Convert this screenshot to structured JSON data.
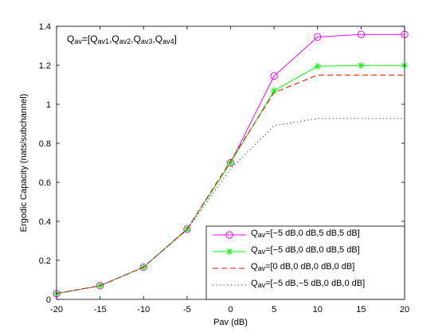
{
  "chart_data": {
    "type": "line",
    "title": "",
    "xlabel": "Pav (dB)",
    "ylabel": "Ergodic Capacity (nats/subchannel)",
    "xlim": [
      -20,
      20
    ],
    "ylim": [
      0,
      1.4
    ],
    "xticks": [
      -20,
      -15,
      -10,
      -5,
      0,
      5,
      10,
      15,
      20
    ],
    "yticks": [
      0,
      0.2,
      0.4,
      0.6,
      0.8,
      1,
      1.2,
      1.4
    ],
    "grid": false,
    "legend_position": "bottom-right",
    "annotation": {
      "parts": [
        {
          "text": "Q",
          "sub": false
        },
        {
          "text": "av",
          "sub": true
        },
        {
          "text": "=[Q",
          "sub": false
        },
        {
          "text": "av1",
          "sub": true
        },
        {
          "text": ",Q",
          "sub": false
        },
        {
          "text": "av2",
          "sub": true
        },
        {
          "text": ",Q",
          "sub": false
        },
        {
          "text": "av3",
          "sub": true
        },
        {
          "text": ",Q",
          "sub": false
        },
        {
          "text": "av4",
          "sub": true
        },
        {
          "text": "]",
          "sub": false
        }
      ]
    },
    "x": [
      -20,
      -15,
      -10,
      -5,
      0,
      5,
      10,
      15,
      20
    ],
    "series": [
      {
        "label_parts": [
          {
            "text": "Q",
            "sub": false
          },
          {
            "text": "av",
            "sub": true
          },
          {
            "text": "=[−5 dB,0 dB,5 dB,5 dB]",
            "sub": false
          }
        ],
        "values": [
          0.03,
          0.07,
          0.165,
          0.36,
          0.7,
          1.145,
          1.345,
          1.358,
          1.358
        ],
        "color": "#ff00ff",
        "dash": "",
        "marker": "circle"
      },
      {
        "label_parts": [
          {
            "text": "Q",
            "sub": false
          },
          {
            "text": "av",
            "sub": true
          },
          {
            "text": "=[−5 dB,0 dB,0 dB,5 dB]",
            "sub": false
          }
        ],
        "values": [
          0.03,
          0.07,
          0.165,
          0.36,
          0.7,
          1.07,
          1.195,
          1.199,
          1.199
        ],
        "color": "#00ff00",
        "dash": "",
        "marker": "asterisk"
      },
      {
        "label_parts": [
          {
            "text": "Q",
            "sub": false
          },
          {
            "text": "av",
            "sub": true
          },
          {
            "text": "=[0 dB,0 dB,0 dB,0 dB]",
            "sub": false
          }
        ],
        "values": [
          0.03,
          0.07,
          0.165,
          0.36,
          0.71,
          1.06,
          1.15,
          1.15,
          1.15
        ],
        "color": "#ff0000",
        "dash": "7,4",
        "marker": "none"
      },
      {
        "label_parts": [
          {
            "text": "Q",
            "sub": false
          },
          {
            "text": "av",
            "sub": true
          },
          {
            "text": "=[−5 dB,−5 dB,0 dB,0 dB]",
            "sub": false
          }
        ],
        "values": [
          0.03,
          0.07,
          0.165,
          0.355,
          0.67,
          0.89,
          0.927,
          0.927,
          0.927
        ],
        "color": "#555555",
        "dash": "1.5,3",
        "marker": "none"
      }
    ]
  }
}
